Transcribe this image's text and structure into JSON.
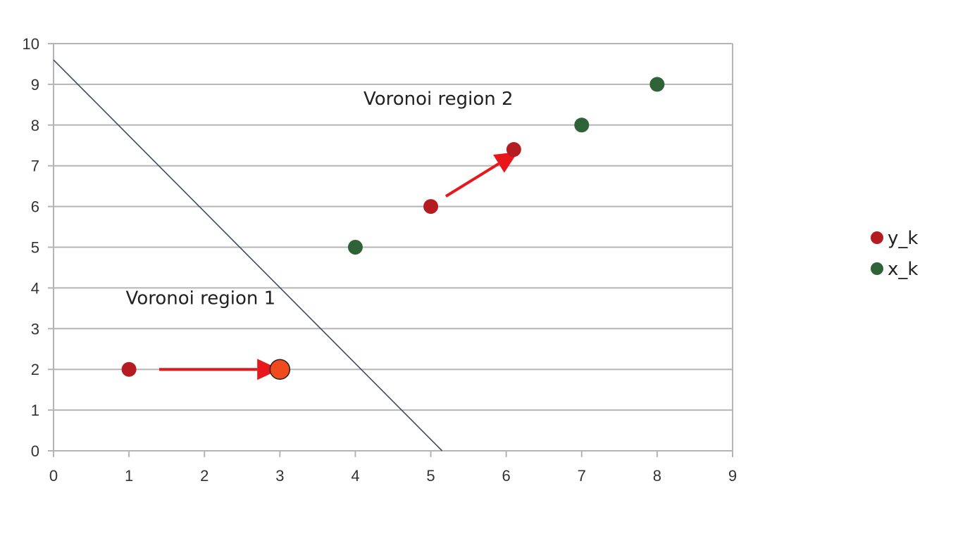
{
  "chart_data": {
    "type": "scatter",
    "xlim": [
      0,
      9
    ],
    "ylim": [
      0,
      10
    ],
    "x_ticks": [
      "0",
      "1",
      "2",
      "3",
      "4",
      "5",
      "6",
      "7",
      "8",
      "9"
    ],
    "y_ticks": [
      "0",
      "1",
      "2",
      "3",
      "4",
      "5",
      "6",
      "7",
      "8",
      "9",
      "10"
    ],
    "grid": "horizontal",
    "legend_position": "right",
    "series": [
      {
        "name": "y_k",
        "color": "#b51c22",
        "points": [
          {
            "x": 1,
            "y": 2
          },
          {
            "x": 5,
            "y": 6
          },
          {
            "x": 6.1,
            "y": 7.4
          }
        ]
      },
      {
        "name": "x_k",
        "color": "#2e6337",
        "points": [
          {
            "x": 4,
            "y": 5
          },
          {
            "x": 7,
            "y": 8
          },
          {
            "x": 8,
            "y": 9
          }
        ]
      }
    ],
    "highlight_point": {
      "x": 3,
      "y": 2,
      "color": "#f04a1e"
    },
    "boundary_line": {
      "from": {
        "x": 0,
        "y": 9.6
      },
      "to": {
        "x": 5.15,
        "y": 0
      },
      "color": "#3d4a63"
    },
    "arrows": [
      {
        "from": {
          "x": 1.4,
          "y": 2
        },
        "to": {
          "x": 2.7,
          "y": 2
        },
        "color": "#e8171c"
      },
      {
        "from": {
          "x": 5.2,
          "y": 6.25
        },
        "to": {
          "x": 5.9,
          "y": 7.05
        },
        "color": "#e8171c"
      }
    ],
    "annotations": [
      {
        "text": "Voronoi region 2",
        "x": 5.1,
        "y": 8.5
      },
      {
        "text": "Voronoi region 1",
        "x": 1.95,
        "y": 3.6
      }
    ]
  }
}
